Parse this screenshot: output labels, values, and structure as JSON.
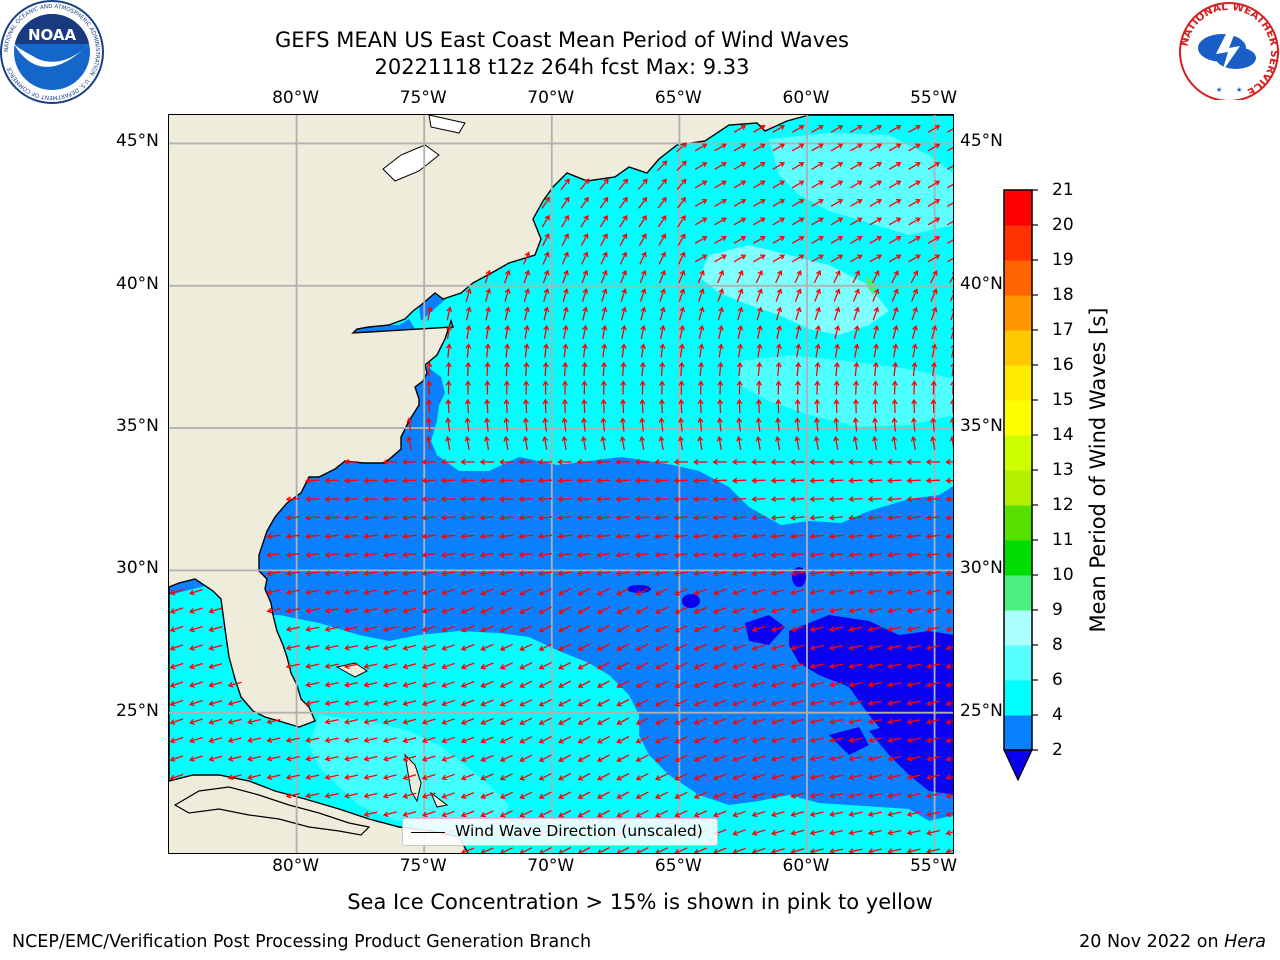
{
  "header": {
    "title_line1": "GEFS MEAN US East Coast Mean Period of Wind Waves",
    "title_line2": "20221118 t12z 264h fcst   Max: 9.33"
  },
  "logos": {
    "noaa_text": "NOAA",
    "noaa_ring_text": "NATIONAL OCEANIC AND ATMOSPHERIC ADMINISTRATION · U.S. DEPARTMENT OF COMMERCE",
    "nws_ring_text": "NATIONAL WEATHER SERVICE"
  },
  "map": {
    "lon_ticks": [
      "80°W",
      "75°W",
      "70°W",
      "65°W",
      "60°W",
      "55°W"
    ],
    "lat_ticks": [
      "45°N",
      "40°N",
      "35°N",
      "30°N",
      "25°N"
    ],
    "lon_values": [
      -80,
      -75,
      -70,
      -65,
      -60,
      -55
    ],
    "lat_values": [
      45,
      40,
      35,
      30,
      25
    ],
    "extent": {
      "lon_min": -85,
      "lon_max": -54.2,
      "lat_min": 20,
      "lat_max": 46
    },
    "land_color": "#efecdc",
    "grid_color": "#b0b0b0",
    "arrow_color": "#ff0000",
    "arrow_meaning": "Wind Wave Direction (unscaled)"
  },
  "colorbar": {
    "title": "Mean Period of Wind Waves [s]",
    "labels": [
      "2",
      "4",
      "6",
      "8",
      "9",
      "10",
      "11",
      "12",
      "13",
      "14",
      "15",
      "16",
      "17",
      "18",
      "19",
      "20",
      "21"
    ],
    "colors": [
      "#0a00f0",
      "#0a80ff",
      "#00ffff",
      "#55ffff",
      "#aaffff",
      "#4cf080",
      "#00dd00",
      "#55e000",
      "#b2f000",
      "#ccff00",
      "#ffff00",
      "#ffea00",
      "#ffc800",
      "#ff9600",
      "#ff6400",
      "#ff3200",
      "#ff0000"
    ]
  },
  "legend": {
    "label": "Wind Wave Direction (unscaled)"
  },
  "footer": {
    "note": "Sea Ice Concentration > 15% is shown in pink to yellow",
    "credit": "NCEP/EMC/Verification Post Processing Product Generation Branch",
    "date_prefix": "20 Nov 2022 on",
    "machine": "Hera"
  },
  "chart_data": {
    "type": "heatmap",
    "title": "GEFS MEAN US East Coast Mean Period of Wind Waves",
    "subtitle": "20221118 t12z 264h fcst   Max: 9.33",
    "colorbar_label": "Mean Period of Wind Waves [s]",
    "levels": [
      2,
      4,
      6,
      8,
      9,
      10,
      11,
      12,
      13,
      14,
      15,
      16,
      17,
      18,
      19,
      20,
      21
    ],
    "max_value": 9.33,
    "x_ticks": [
      "80°W",
      "75°W",
      "70°W",
      "65°W",
      "60°W",
      "55°W"
    ],
    "y_ticks": [
      "45°N",
      "40°N",
      "35°N",
      "30°N",
      "25°N"
    ],
    "grid": true,
    "legend_placement": "bottom-center",
    "vector_field": "Wind Wave Direction (unscaled)"
  }
}
